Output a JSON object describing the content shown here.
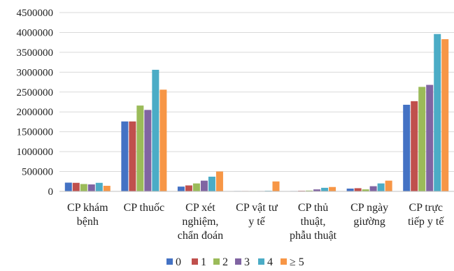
{
  "chart_data": {
    "type": "bar",
    "title": "",
    "xlabel": "",
    "ylabel": "",
    "ylim": [
      0,
      4500000
    ],
    "yticks": [
      0,
      500000,
      1000000,
      1500000,
      2000000,
      2500000,
      3000000,
      3500000,
      4000000,
      4500000
    ],
    "grid": true,
    "legend_position": "bottom",
    "categories": [
      [
        "CP khám",
        "bệnh"
      ],
      [
        "CP thuốc"
      ],
      [
        "CP xét",
        "nghiệm,",
        "chẩn đoán"
      ],
      [
        "CP vật tư",
        "y tế"
      ],
      [
        "CP thủ",
        "thuật,",
        "phẫu thuật"
      ],
      [
        "CP ngày",
        "giường"
      ],
      [
        "CP trực",
        "tiếp y tế"
      ]
    ],
    "series": [
      {
        "name": "0",
        "color": "#4472C4",
        "values": [
          220000,
          1760000,
          120000,
          10000,
          10000,
          70000,
          2180000
        ]
      },
      {
        "name": "1",
        "color": "#C0504D",
        "values": [
          215000,
          1760000,
          150000,
          10000,
          15000,
          80000,
          2270000
        ]
      },
      {
        "name": "2",
        "color": "#9BBB59",
        "values": [
          185000,
          2160000,
          200000,
          10000,
          20000,
          50000,
          2630000
        ]
      },
      {
        "name": "3",
        "color": "#8064A2",
        "values": [
          175000,
          2050000,
          270000,
          10000,
          50000,
          130000,
          2680000
        ]
      },
      {
        "name": "4",
        "color": "#4BACC6",
        "values": [
          215000,
          3060000,
          370000,
          15000,
          90000,
          200000,
          3960000
        ]
      },
      {
        "name": "≥ 5",
        "color": "#F79646",
        "values": [
          140000,
          2560000,
          500000,
          250000,
          110000,
          270000,
          3830000
        ]
      }
    ]
  }
}
